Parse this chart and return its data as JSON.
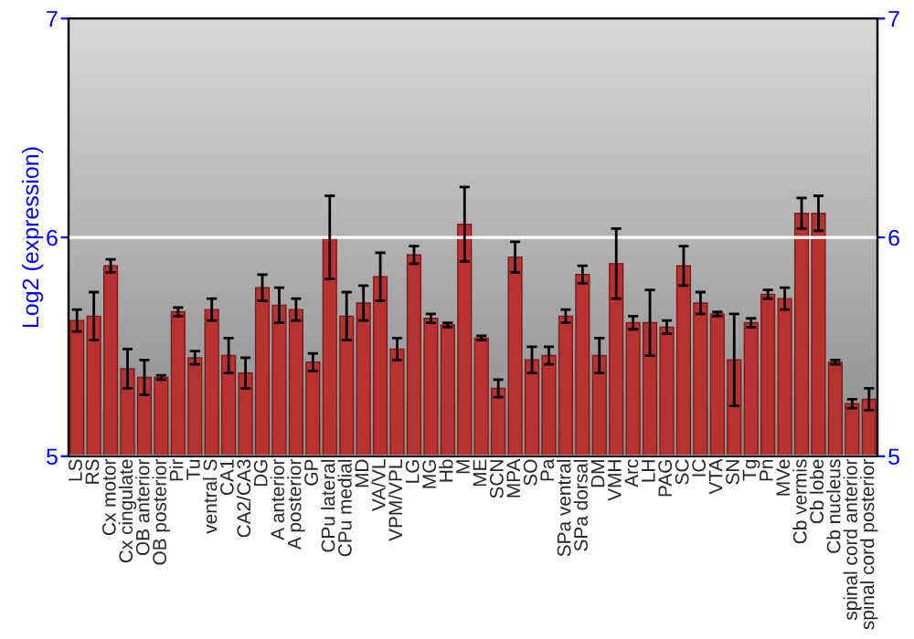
{
  "chart_data": {
    "type": "bar",
    "ylabel": "Log2 (expression)",
    "categories": [
      "LS",
      "RS",
      "Cx motor",
      "Cx cingulate",
      "OB anterior",
      "OB posterior",
      "Pir",
      "Tu",
      "ventral S",
      "CA1",
      "CA2/CA3",
      "DG",
      "A anterior",
      "A posterior",
      "GP",
      "CPu lateral",
      "CPu medial",
      "MD",
      "VA/VL",
      "VPM/VPL",
      "LG",
      "MG",
      "Hb",
      "M",
      "ME",
      "SCN",
      "MPA",
      "SO",
      "Pa",
      "SPa ventral",
      "SPa dorsal",
      "DM",
      "VMH",
      "Arc",
      "LH",
      "PAG",
      "SC",
      "IC",
      "VTA",
      "SN",
      "Tg",
      "Pn",
      "MVe",
      "Cb vermis",
      "Cb lobe",
      "Cb nucleus",
      "spinal cord anterior",
      "spinal cord posterior"
    ],
    "values": [
      5.62,
      5.64,
      5.87,
      5.4,
      5.36,
      5.36,
      5.66,
      5.45,
      5.67,
      5.46,
      5.38,
      5.77,
      5.69,
      5.67,
      5.43,
      6.0,
      5.64,
      5.7,
      5.82,
      5.49,
      5.92,
      5.63,
      5.6,
      6.06,
      5.54,
      5.31,
      5.91,
      5.44,
      5.46,
      5.64,
      5.83,
      5.46,
      5.88,
      5.61,
      5.61,
      5.59,
      5.87,
      5.7,
      5.65,
      5.44,
      5.61,
      5.74,
      5.72,
      6.11,
      6.11,
      5.43,
      5.24,
      5.26
    ],
    "errors": [
      0.05,
      0.11,
      0.03,
      0.09,
      0.08,
      0.01,
      0.02,
      0.03,
      0.05,
      0.08,
      0.07,
      0.06,
      0.08,
      0.05,
      0.04,
      0.19,
      0.11,
      0.08,
      0.11,
      0.05,
      0.04,
      0.02,
      0.01,
      0.17,
      0.01,
      0.04,
      0.07,
      0.06,
      0.04,
      0.03,
      0.04,
      0.08,
      0.16,
      0.03,
      0.15,
      0.03,
      0.09,
      0.05,
      0.01,
      0.21,
      0.02,
      0.02,
      0.05,
      0.07,
      0.08,
      0.01,
      0.02,
      0.05
    ],
    "color": "#b83232",
    "ylim": [
      5,
      7
    ],
    "yticks": [
      5,
      6,
      7
    ],
    "y2lim": [
      5,
      7
    ],
    "y2ticks": [
      5,
      6,
      7
    ],
    "grid": "y"
  }
}
